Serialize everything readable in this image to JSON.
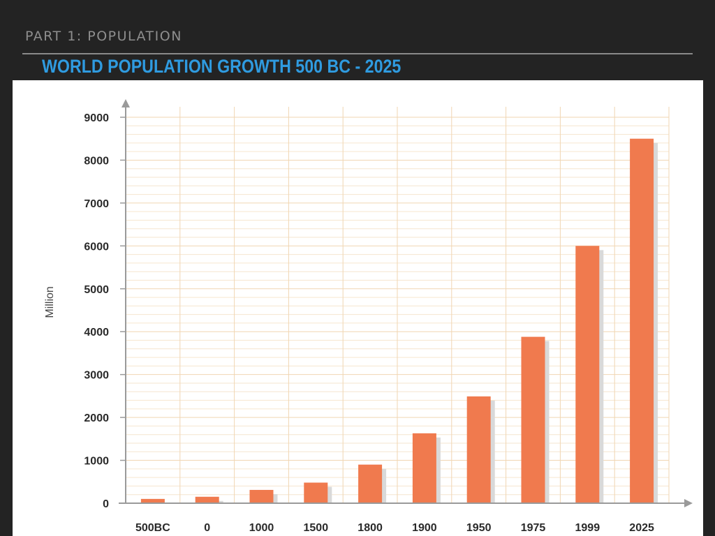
{
  "slide": {
    "section_label": "PART 1: POPULATION",
    "title": "WORLD POPULATION GROWTH 500 BC - 2025"
  },
  "colors": {
    "background": "#232323",
    "title": "#2f9be0",
    "bar": "#f07a4e",
    "bar_shadow": "#d9d9d9",
    "grid_minor": "#f6e6cf",
    "grid_major": "#f1d6b2"
  },
  "chart_data": {
    "type": "bar",
    "categories": [
      "500BC",
      "0",
      "1000",
      "1500",
      "1800",
      "1900",
      "1950",
      "1975",
      "1999",
      "2025"
    ],
    "values": [
      100,
      150,
      310,
      480,
      900,
      1630,
      2490,
      3880,
      6000,
      8500
    ],
    "xlabel": "",
    "ylabel": "Million",
    "ylim": [
      0,
      9000
    ],
    "yticks": [
      0,
      1000,
      2000,
      3000,
      4000,
      5000,
      6000,
      7000,
      8000,
      9000
    ],
    "grid": true,
    "legend": "none"
  }
}
